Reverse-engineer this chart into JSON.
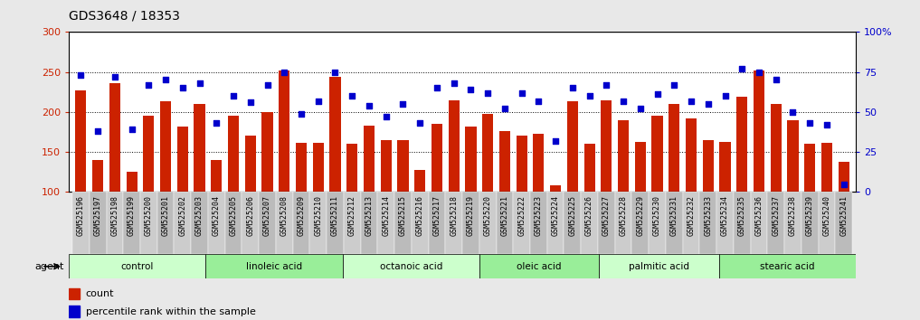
{
  "title": "GDS3648 / 18353",
  "samples": [
    "GSM525196",
    "GSM525197",
    "GSM525198",
    "GSM525199",
    "GSM525200",
    "GSM525201",
    "GSM525202",
    "GSM525203",
    "GSM525204",
    "GSM525205",
    "GSM525206",
    "GSM525207",
    "GSM525208",
    "GSM525209",
    "GSM525210",
    "GSM525211",
    "GSM525212",
    "GSM525213",
    "GSM525214",
    "GSM525215",
    "GSM525216",
    "GSM525217",
    "GSM525218",
    "GSM525219",
    "GSM525220",
    "GSM525221",
    "GSM525222",
    "GSM525223",
    "GSM525224",
    "GSM525225",
    "GSM525226",
    "GSM525227",
    "GSM525228",
    "GSM525229",
    "GSM525230",
    "GSM525231",
    "GSM525232",
    "GSM525233",
    "GSM525234",
    "GSM525235",
    "GSM525236",
    "GSM525237",
    "GSM525238",
    "GSM525239",
    "GSM525240",
    "GSM525241"
  ],
  "counts": [
    227,
    140,
    236,
    125,
    195,
    214,
    182,
    210,
    140,
    195,
    170,
    200,
    252,
    162,
    162,
    244,
    160,
    183,
    165,
    165,
    128,
    185,
    215,
    182,
    198,
    176,
    170,
    173,
    108,
    213,
    160,
    215,
    190,
    163,
    195,
    210,
    192,
    165,
    163,
    219,
    252,
    210,
    190,
    160,
    162,
    138
  ],
  "percentiles": [
    73,
    38,
    72,
    39,
    67,
    70,
    65,
    68,
    43,
    60,
    56,
    67,
    75,
    49,
    57,
    75,
    60,
    54,
    47,
    55,
    43,
    65,
    68,
    64,
    62,
    52,
    62,
    57,
    32,
    65,
    60,
    67,
    57,
    52,
    61,
    67,
    57,
    55,
    60,
    77,
    75,
    70,
    50,
    43,
    42,
    5
  ],
  "groups": [
    {
      "label": "control",
      "start": 0,
      "end": 8
    },
    {
      "label": "linoleic acid",
      "start": 8,
      "end": 16
    },
    {
      "label": "octanoic acid",
      "start": 16,
      "end": 24
    },
    {
      "label": "oleic acid",
      "start": 24,
      "end": 31
    },
    {
      "label": "palmitic acid",
      "start": 31,
      "end": 38
    },
    {
      "label": "stearic acid",
      "start": 38,
      "end": 46
    }
  ],
  "bar_color": "#cc2200",
  "dot_color": "#0000cc",
  "group_colors": [
    "#ccffcc",
    "#99ee99"
  ],
  "ylim_left": [
    100,
    300
  ],
  "ylim_right": [
    0,
    100
  ],
  "yticks_left": [
    100,
    150,
    200,
    250,
    300
  ],
  "yticks_right": [
    0,
    25,
    50,
    75,
    100
  ],
  "ytick_labels_right": [
    "0",
    "25",
    "50",
    "75",
    "100%"
  ],
  "background_color": "#e8e8e8",
  "plot_bg": "#ffffff",
  "xtick_bg": "#cccccc",
  "legend_count_color": "#cc2200",
  "legend_dot_color": "#0000cc",
  "title_fontsize": 10,
  "axis_fontsize": 8,
  "xtick_fontsize": 6
}
